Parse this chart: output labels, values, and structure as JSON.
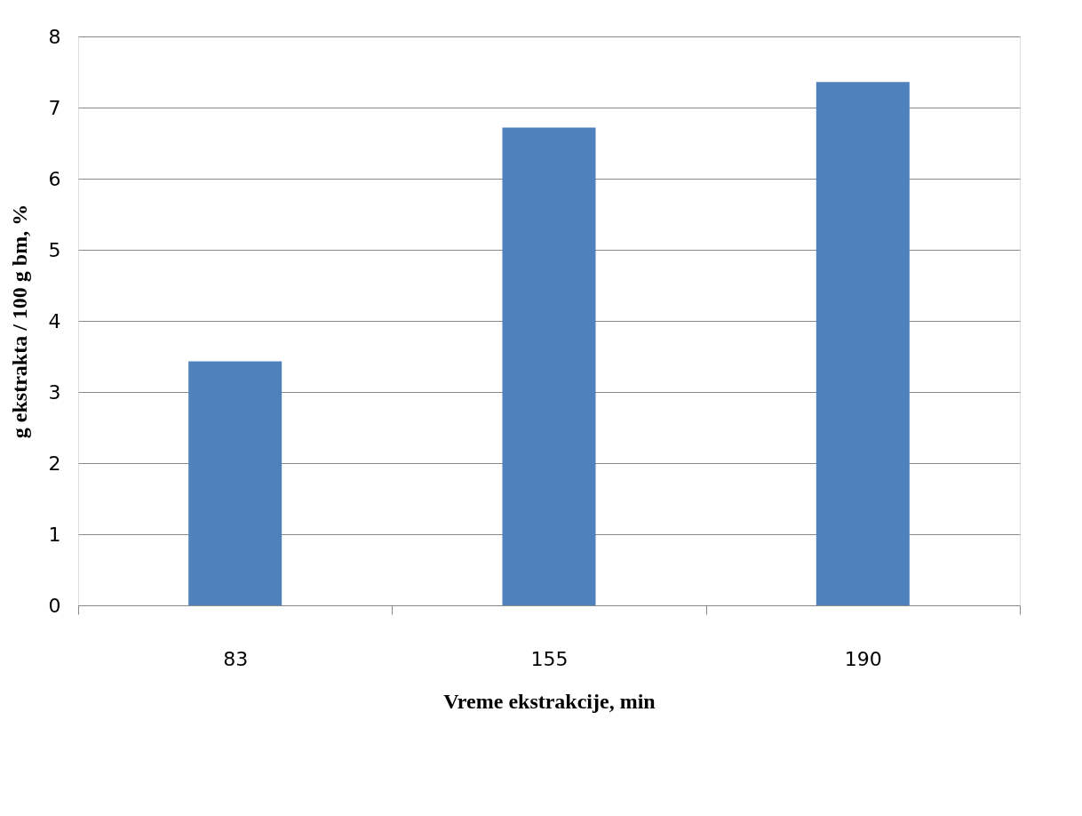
{
  "chart_data": {
    "type": "bar",
    "xlabel": "Vreme ekstrakcije, min",
    "ylabel": "g ekstrakta / 100 g bm, %",
    "categories": [
      "83",
      "155",
      "190"
    ],
    "values": [
      3.43,
      6.72,
      7.36
    ],
    "color": "#4f81bd",
    "ylim": [
      0,
      8
    ],
    "yticks": [
      0,
      1,
      2,
      3,
      4,
      5,
      6,
      7,
      8
    ],
    "grid": "y"
  }
}
